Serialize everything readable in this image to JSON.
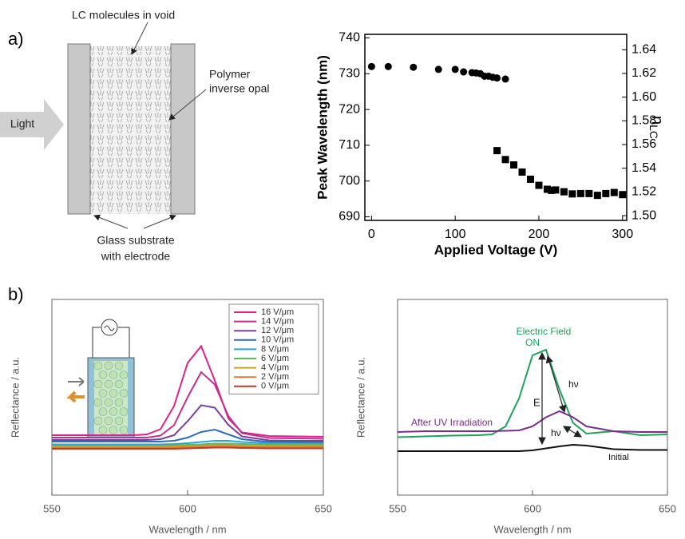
{
  "panel_labels": [
    "a)",
    "b)"
  ],
  "diagram": {
    "light": "Light",
    "lc_label": "LC molecules in void",
    "polymer_label": [
      "Polymer",
      "inverse opal"
    ],
    "glass_label": [
      "Glass substrate",
      "with electrode"
    ]
  },
  "chart_data": [
    {
      "type": "scatter",
      "ylabel": "Peak Wavelength (nm)",
      "xlabel": "Applied Voltage (V)",
      "y2label": "n",
      "y2label_sub": "LC",
      "xlim": [
        -8,
        305
      ],
      "xticks": [
        0,
        100,
        200,
        300
      ],
      "ylim": [
        689,
        741
      ],
      "yticks": [
        690,
        700,
        710,
        720,
        730,
        740
      ],
      "y2lim": [
        1.496,
        1.653
      ],
      "y2ticks": [
        {
          "value": 1.5,
          "label": "1.50"
        },
        {
          "value": 1.52,
          "label": "1.52"
        },
        {
          "value": 1.54,
          "label": "1.54"
        },
        {
          "value": 1.56,
          "label": "1.56"
        },
        {
          "value": 1.58,
          "label": "1.58"
        },
        {
          "value": 1.6,
          "label": "1.60"
        },
        {
          "value": 1.62,
          "label": "1.62"
        },
        {
          "value": 1.64,
          "label": "1.64"
        }
      ],
      "series": [
        {
          "marker": "circle",
          "color": "#000000",
          "x": [
            0,
            20,
            50,
            80,
            100,
            110,
            120,
            125,
            130,
            135,
            140,
            145,
            150,
            160
          ],
          "values": [
            732,
            732,
            731.8,
            731.2,
            731.2,
            730.5,
            730.3,
            730.2,
            730,
            729.3,
            729.3,
            729,
            728.8,
            728.5
          ]
        },
        {
          "marker": "square",
          "color": "#000000",
          "x": [
            150,
            160,
            170,
            180,
            190,
            200,
            210,
            215,
            220,
            230,
            240,
            250,
            260,
            270,
            280,
            290,
            300
          ],
          "values": [
            708.5,
            706,
            704.5,
            702.5,
            700.5,
            698.8,
            697.7,
            697.4,
            697.5,
            697,
            696.4,
            696.5,
            696.5,
            696,
            696.5,
            696.8,
            696.2
          ]
        }
      ]
    },
    {
      "type": "line",
      "ylabel": "Reflectance / a.u.",
      "xlabel": "Wavelength / nm",
      "xlim": [
        550,
        650
      ],
      "xticks": [
        550,
        600,
        650
      ],
      "ylim": [
        0,
        4.9
      ],
      "legend": "upper right",
      "x": [
        550,
        560,
        570,
        580,
        585,
        590,
        595,
        600,
        605,
        610,
        615,
        620,
        630,
        640,
        650
      ],
      "series": [
        {
          "name": "16 V/μm",
          "color": "#e0218a",
          "values": [
            1.5,
            1.5,
            1.5,
            1.5,
            1.52,
            1.65,
            2.23,
            3.31,
            3.73,
            2.87,
            1.92,
            1.57,
            1.48,
            1.47,
            1.46
          ]
        },
        {
          "name": "14 V/μm",
          "color": "#c2308f",
          "values": [
            1.44,
            1.44,
            1.44,
            1.44,
            1.44,
            1.49,
            1.75,
            2.45,
            3.08,
            2.77,
            1.98,
            1.55,
            1.43,
            1.42,
            1.41
          ]
        },
        {
          "name": "12 V/μm",
          "color": "#7b3f99",
          "values": [
            1.38,
            1.38,
            1.38,
            1.38,
            1.38,
            1.4,
            1.5,
            1.85,
            2.25,
            2.19,
            1.76,
            1.47,
            1.37,
            1.36,
            1.36
          ]
        },
        {
          "name": "10 V/μm",
          "color": "#2e6db5",
          "values": [
            1.34,
            1.34,
            1.34,
            1.34,
            1.34,
            1.34,
            1.36,
            1.44,
            1.58,
            1.64,
            1.52,
            1.4,
            1.33,
            1.33,
            1.32
          ]
        },
        {
          "name": "8 V/μm",
          "color": "#29a6d9",
          "values": [
            1.27,
            1.27,
            1.27,
            1.27,
            1.27,
            1.27,
            1.28,
            1.3,
            1.33,
            1.36,
            1.36,
            1.33,
            1.3,
            1.29,
            1.29
          ]
        },
        {
          "name": "6 V/μm",
          "color": "#5cb85c",
          "values": [
            1.24,
            1.24,
            1.24,
            1.24,
            1.24,
            1.24,
            1.25,
            1.26,
            1.27,
            1.29,
            1.29,
            1.28,
            1.27,
            1.27,
            1.27
          ]
        },
        {
          "name": "4 V/μm",
          "color": "#c9a227",
          "values": [
            1.21,
            1.21,
            1.21,
            1.21,
            1.21,
            1.21,
            1.22,
            1.23,
            1.24,
            1.25,
            1.25,
            1.24,
            1.23,
            1.23,
            1.23
          ]
        },
        {
          "name": "2 V/μm",
          "color": "#e07b39",
          "values": [
            1.18,
            1.18,
            1.18,
            1.18,
            1.18,
            1.18,
            1.19,
            1.2,
            1.21,
            1.22,
            1.22,
            1.21,
            1.2,
            1.2,
            1.2
          ]
        },
        {
          "name": "0 V/μm",
          "color": "#c0392b",
          "values": [
            1.16,
            1.16,
            1.16,
            1.16,
            1.16,
            1.16,
            1.16,
            1.17,
            1.18,
            1.19,
            1.19,
            1.18,
            1.17,
            1.17,
            1.17
          ]
        }
      ]
    },
    {
      "type": "line",
      "ylabel": "Reflectance / a.u.",
      "xlabel": "Wavelength / nm",
      "xlim": [
        550,
        650
      ],
      "xticks": [
        550,
        600,
        650
      ],
      "ylim": [
        0,
        4.9
      ],
      "x": [
        550,
        560,
        570,
        580,
        585,
        590,
        595,
        600,
        605,
        610,
        615,
        620,
        630,
        640,
        650
      ],
      "labels": {
        "field_on": [
          "Electric Field",
          "ON"
        ],
        "uv": "After UV Irradiation",
        "initial": "Initial",
        "energy": "E",
        "photon": [
          "hν",
          "hν"
        ]
      },
      "series": [
        {
          "color": "#1aa35a",
          "values": [
            1.45,
            1.47,
            1.49,
            1.5,
            1.52,
            1.72,
            2.42,
            3.5,
            3.64,
            2.64,
            1.81,
            1.54,
            1.6,
            1.5,
            1.52
          ]
        },
        {
          "color": "#7b2d8e",
          "values": [
            1.58,
            1.6,
            1.6,
            1.6,
            1.6,
            1.61,
            1.62,
            1.72,
            1.95,
            2.1,
            1.95,
            1.72,
            1.6,
            1.58,
            1.58
          ]
        },
        {
          "color": "#111111",
          "values": [
            1.1,
            1.1,
            1.1,
            1.1,
            1.1,
            1.1,
            1.1,
            1.12,
            1.17,
            1.22,
            1.26,
            1.24,
            1.15,
            1.13,
            1.13
          ]
        }
      ]
    }
  ]
}
